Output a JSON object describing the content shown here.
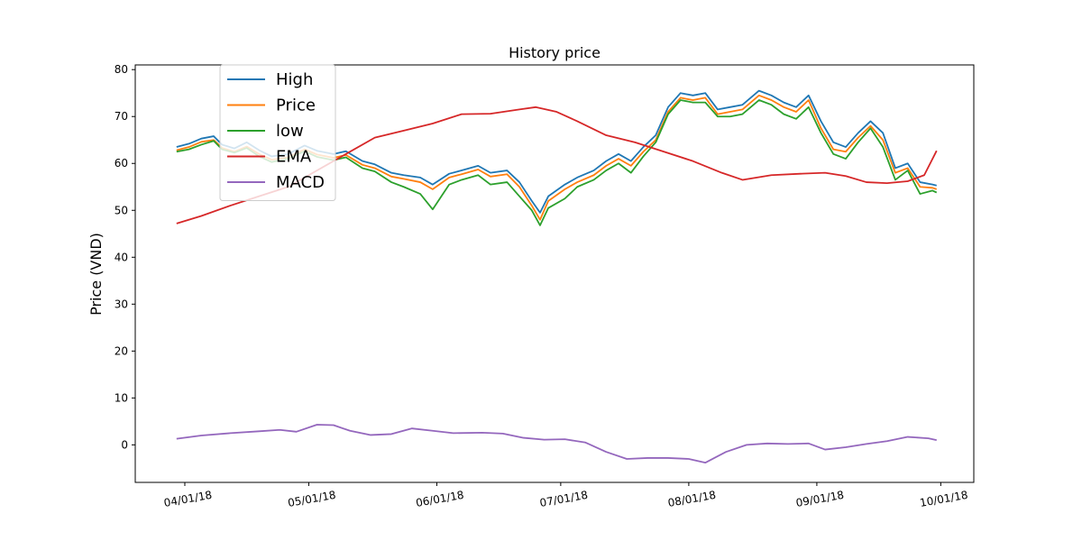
{
  "chart_data": {
    "type": "line",
    "title": "History price",
    "xlabel": "",
    "ylabel": "Price (VND)",
    "ylim": [
      -8,
      81
    ],
    "yticks": [
      0,
      10,
      20,
      30,
      40,
      50,
      60,
      70,
      80
    ],
    "xticks": [
      {
        "date": "2018-04-01",
        "label": "04/01/18"
      },
      {
        "date": "2018-05-01",
        "label": "05/01/18"
      },
      {
        "date": "2018-06-01",
        "label": "06/01/18"
      },
      {
        "date": "2018-07-01",
        "label": "07/01/18"
      },
      {
        "date": "2018-08-01",
        "label": "08/01/18"
      },
      {
        "date": "2018-09-01",
        "label": "09/01/18"
      },
      {
        "date": "2018-10-01",
        "label": "10/01/18"
      }
    ],
    "xlim": [
      "2018-03-20",
      "2018-10-09"
    ],
    "legend": "upper-left",
    "grid": false,
    "series": [
      {
        "name": "High",
        "color": "#1f77b4",
        "points": [
          [
            "2018-03-30",
            63.5
          ],
          [
            "2018-04-02",
            64.2
          ],
          [
            "2018-04-05",
            65.3
          ],
          [
            "2018-04-08",
            65.8
          ],
          [
            "2018-04-10",
            64.0
          ],
          [
            "2018-04-13",
            63.2
          ],
          [
            "2018-04-16",
            64.5
          ],
          [
            "2018-04-19",
            62.8
          ],
          [
            "2018-04-22",
            61.5
          ],
          [
            "2018-04-26",
            62.0
          ],
          [
            "2018-04-30",
            63.8
          ],
          [
            "2018-05-03",
            62.7
          ],
          [
            "2018-05-07",
            62.0
          ],
          [
            "2018-05-10",
            62.6
          ],
          [
            "2018-05-14",
            60.5
          ],
          [
            "2018-05-17",
            59.8
          ],
          [
            "2018-05-21",
            58.0
          ],
          [
            "2018-05-24",
            57.5
          ],
          [
            "2018-05-28",
            57.0
          ],
          [
            "2018-05-31",
            55.5
          ],
          [
            "2018-06-04",
            57.8
          ],
          [
            "2018-06-07",
            58.5
          ],
          [
            "2018-06-11",
            59.5
          ],
          [
            "2018-06-14",
            58.0
          ],
          [
            "2018-06-18",
            58.5
          ],
          [
            "2018-06-21",
            56.0
          ],
          [
            "2018-06-24",
            52.0
          ],
          [
            "2018-06-26",
            49.5
          ],
          [
            "2018-06-28",
            53.0
          ],
          [
            "2018-07-02",
            55.5
          ],
          [
            "2018-07-05",
            57.0
          ],
          [
            "2018-07-09",
            58.5
          ],
          [
            "2018-07-12",
            60.5
          ],
          [
            "2018-07-15",
            62.0
          ],
          [
            "2018-07-18",
            60.5
          ],
          [
            "2018-07-21",
            63.5
          ],
          [
            "2018-07-24",
            66.0
          ],
          [
            "2018-07-27",
            72.0
          ],
          [
            "2018-07-30",
            75.0
          ],
          [
            "2018-08-02",
            74.5
          ],
          [
            "2018-08-05",
            75.0
          ],
          [
            "2018-08-08",
            71.5
          ],
          [
            "2018-08-11",
            72.0
          ],
          [
            "2018-08-14",
            72.5
          ],
          [
            "2018-08-18",
            75.5
          ],
          [
            "2018-08-21",
            74.5
          ],
          [
            "2018-08-24",
            73.0
          ],
          [
            "2018-08-27",
            72.0
          ],
          [
            "2018-08-30",
            74.5
          ],
          [
            "2018-09-02",
            69.0
          ],
          [
            "2018-09-05",
            64.5
          ],
          [
            "2018-09-08",
            63.5
          ],
          [
            "2018-09-11",
            66.5
          ],
          [
            "2018-09-14",
            69.0
          ],
          [
            "2018-09-17",
            66.5
          ],
          [
            "2018-09-20",
            59.0
          ],
          [
            "2018-09-23",
            60.0
          ],
          [
            "2018-09-26",
            56.0
          ],
          [
            "2018-09-29",
            55.5
          ],
          [
            "2018-09-30",
            55.3
          ]
        ]
      },
      {
        "name": "Price",
        "color": "#ff7f0e",
        "points": [
          [
            "2018-03-30",
            62.8
          ],
          [
            "2018-04-02",
            63.5
          ],
          [
            "2018-04-05",
            64.6
          ],
          [
            "2018-04-08",
            65.0
          ],
          [
            "2018-04-10",
            63.3
          ],
          [
            "2018-04-13",
            62.5
          ],
          [
            "2018-04-16",
            63.6
          ],
          [
            "2018-04-19",
            62.0
          ],
          [
            "2018-04-22",
            60.8
          ],
          [
            "2018-04-26",
            61.3
          ],
          [
            "2018-04-30",
            63.0
          ],
          [
            "2018-05-03",
            61.9
          ],
          [
            "2018-05-07",
            61.2
          ],
          [
            "2018-05-10",
            61.8
          ],
          [
            "2018-05-14",
            59.7
          ],
          [
            "2018-05-17",
            59.0
          ],
          [
            "2018-05-21",
            57.2
          ],
          [
            "2018-05-24",
            56.7
          ],
          [
            "2018-05-28",
            56.0
          ],
          [
            "2018-05-31",
            54.5
          ],
          [
            "2018-06-04",
            57.0
          ],
          [
            "2018-06-07",
            57.7
          ],
          [
            "2018-06-11",
            58.7
          ],
          [
            "2018-06-14",
            57.2
          ],
          [
            "2018-06-18",
            57.7
          ],
          [
            "2018-06-21",
            55.0
          ],
          [
            "2018-06-24",
            51.0
          ],
          [
            "2018-06-26",
            48.0
          ],
          [
            "2018-06-28",
            52.0
          ],
          [
            "2018-07-02",
            54.5
          ],
          [
            "2018-07-05",
            56.0
          ],
          [
            "2018-07-09",
            57.5
          ],
          [
            "2018-07-12",
            59.5
          ],
          [
            "2018-07-15",
            61.0
          ],
          [
            "2018-07-18",
            59.5
          ],
          [
            "2018-07-21",
            62.5
          ],
          [
            "2018-07-24",
            65.0
          ],
          [
            "2018-07-27",
            71.0
          ],
          [
            "2018-07-30",
            74.0
          ],
          [
            "2018-08-02",
            73.5
          ],
          [
            "2018-08-05",
            74.0
          ],
          [
            "2018-08-08",
            70.5
          ],
          [
            "2018-08-11",
            71.0
          ],
          [
            "2018-08-14",
            71.5
          ],
          [
            "2018-08-18",
            74.5
          ],
          [
            "2018-08-21",
            73.5
          ],
          [
            "2018-08-24",
            72.0
          ],
          [
            "2018-08-27",
            71.0
          ],
          [
            "2018-08-30",
            73.5
          ],
          [
            "2018-09-02",
            67.5
          ],
          [
            "2018-09-05",
            63.0
          ],
          [
            "2018-09-08",
            62.5
          ],
          [
            "2018-09-11",
            65.5
          ],
          [
            "2018-09-14",
            68.0
          ],
          [
            "2018-09-17",
            65.0
          ],
          [
            "2018-09-20",
            58.0
          ],
          [
            "2018-09-23",
            59.0
          ],
          [
            "2018-09-26",
            55.0
          ],
          [
            "2018-09-29",
            54.8
          ],
          [
            "2018-09-30",
            54.5
          ]
        ]
      },
      {
        "name": "low",
        "color": "#2ca02c",
        "points": [
          [
            "2018-03-30",
            62.5
          ],
          [
            "2018-04-02",
            63.0
          ],
          [
            "2018-04-05",
            64.0
          ],
          [
            "2018-04-08",
            64.8
          ],
          [
            "2018-04-10",
            63.0
          ],
          [
            "2018-04-13",
            62.3
          ],
          [
            "2018-04-16",
            63.3
          ],
          [
            "2018-04-19",
            61.5
          ],
          [
            "2018-04-22",
            60.3
          ],
          [
            "2018-04-26",
            61.0
          ],
          [
            "2018-04-30",
            62.6
          ],
          [
            "2018-05-03",
            61.4
          ],
          [
            "2018-05-07",
            60.7
          ],
          [
            "2018-05-10",
            61.3
          ],
          [
            "2018-05-14",
            59.0
          ],
          [
            "2018-05-17",
            58.3
          ],
          [
            "2018-05-21",
            56.0
          ],
          [
            "2018-05-24",
            55.0
          ],
          [
            "2018-05-28",
            53.5
          ],
          [
            "2018-05-31",
            50.2
          ],
          [
            "2018-06-04",
            55.5
          ],
          [
            "2018-06-07",
            56.5
          ],
          [
            "2018-06-11",
            57.5
          ],
          [
            "2018-06-14",
            55.5
          ],
          [
            "2018-06-18",
            56.0
          ],
          [
            "2018-06-21",
            53.0
          ],
          [
            "2018-06-24",
            50.0
          ],
          [
            "2018-06-26",
            46.8
          ],
          [
            "2018-06-28",
            50.5
          ],
          [
            "2018-07-02",
            52.5
          ],
          [
            "2018-07-05",
            55.0
          ],
          [
            "2018-07-09",
            56.5
          ],
          [
            "2018-07-12",
            58.5
          ],
          [
            "2018-07-15",
            60.0
          ],
          [
            "2018-07-18",
            58.0
          ],
          [
            "2018-07-21",
            61.5
          ],
          [
            "2018-07-24",
            64.5
          ],
          [
            "2018-07-27",
            70.5
          ],
          [
            "2018-07-30",
            73.5
          ],
          [
            "2018-08-02",
            73.0
          ],
          [
            "2018-08-05",
            73.0
          ],
          [
            "2018-08-08",
            70.0
          ],
          [
            "2018-08-11",
            70.0
          ],
          [
            "2018-08-14",
            70.5
          ],
          [
            "2018-08-18",
            73.5
          ],
          [
            "2018-08-21",
            72.5
          ],
          [
            "2018-08-24",
            70.5
          ],
          [
            "2018-08-27",
            69.5
          ],
          [
            "2018-08-30",
            72.0
          ],
          [
            "2018-09-02",
            66.5
          ],
          [
            "2018-09-05",
            62.0
          ],
          [
            "2018-09-08",
            61.0
          ],
          [
            "2018-09-11",
            64.5
          ],
          [
            "2018-09-14",
            67.5
          ],
          [
            "2018-09-17",
            63.5
          ],
          [
            "2018-09-20",
            56.5
          ],
          [
            "2018-09-23",
            58.5
          ],
          [
            "2018-09-26",
            53.5
          ],
          [
            "2018-09-29",
            54.2
          ],
          [
            "2018-09-30",
            53.8
          ]
        ]
      },
      {
        "name": "EMA",
        "color": "#d62728",
        "points": [
          [
            "2018-03-30",
            47.2
          ],
          [
            "2018-04-05",
            48.8
          ],
          [
            "2018-04-12",
            51.0
          ],
          [
            "2018-04-19",
            53.0
          ],
          [
            "2018-04-26",
            55.0
          ],
          [
            "2018-05-03",
            58.5
          ],
          [
            "2018-05-10",
            62.0
          ],
          [
            "2018-05-17",
            65.5
          ],
          [
            "2018-05-24",
            67.0
          ],
          [
            "2018-05-31",
            68.5
          ],
          [
            "2018-06-07",
            70.5
          ],
          [
            "2018-06-14",
            70.6
          ],
          [
            "2018-06-21",
            71.5
          ],
          [
            "2018-06-25",
            72.0
          ],
          [
            "2018-06-30",
            71.0
          ],
          [
            "2018-07-05",
            69.0
          ],
          [
            "2018-07-12",
            66.0
          ],
          [
            "2018-07-19",
            64.5
          ],
          [
            "2018-07-26",
            62.5
          ],
          [
            "2018-08-02",
            60.5
          ],
          [
            "2018-08-09",
            58.0
          ],
          [
            "2018-08-14",
            56.5
          ],
          [
            "2018-08-21",
            57.5
          ],
          [
            "2018-08-28",
            57.8
          ],
          [
            "2018-09-03",
            58.0
          ],
          [
            "2018-09-08",
            57.3
          ],
          [
            "2018-09-13",
            56.0
          ],
          [
            "2018-09-18",
            55.8
          ],
          [
            "2018-09-23",
            56.2
          ],
          [
            "2018-09-27",
            57.5
          ],
          [
            "2018-09-30",
            62.7
          ]
        ]
      },
      {
        "name": "MACD",
        "color": "#9467bd",
        "points": [
          [
            "2018-03-30",
            1.3
          ],
          [
            "2018-04-05",
            2.0
          ],
          [
            "2018-04-12",
            2.5
          ],
          [
            "2018-04-19",
            2.9
          ],
          [
            "2018-04-24",
            3.2
          ],
          [
            "2018-04-28",
            2.8
          ],
          [
            "2018-05-03",
            4.3
          ],
          [
            "2018-05-07",
            4.2
          ],
          [
            "2018-05-11",
            3.0
          ],
          [
            "2018-05-16",
            2.1
          ],
          [
            "2018-05-21",
            2.3
          ],
          [
            "2018-05-26",
            3.5
          ],
          [
            "2018-05-31",
            3.0
          ],
          [
            "2018-06-05",
            2.5
          ],
          [
            "2018-06-12",
            2.6
          ],
          [
            "2018-06-17",
            2.4
          ],
          [
            "2018-06-22",
            1.5
          ],
          [
            "2018-06-27",
            1.1
          ],
          [
            "2018-07-02",
            1.2
          ],
          [
            "2018-07-07",
            0.5
          ],
          [
            "2018-07-12",
            -1.5
          ],
          [
            "2018-07-17",
            -3.0
          ],
          [
            "2018-07-22",
            -2.8
          ],
          [
            "2018-07-27",
            -2.8
          ],
          [
            "2018-08-01",
            -3.0
          ],
          [
            "2018-08-05",
            -3.8
          ],
          [
            "2018-08-10",
            -1.5
          ],
          [
            "2018-08-15",
            0.0
          ],
          [
            "2018-08-20",
            0.3
          ],
          [
            "2018-08-25",
            0.2
          ],
          [
            "2018-08-30",
            0.3
          ],
          [
            "2018-09-03",
            -1.0
          ],
          [
            "2018-09-08",
            -0.5
          ],
          [
            "2018-09-13",
            0.2
          ],
          [
            "2018-09-18",
            0.8
          ],
          [
            "2018-09-23",
            1.7
          ],
          [
            "2018-09-28",
            1.4
          ],
          [
            "2018-09-30",
            1.0
          ]
        ]
      }
    ]
  }
}
